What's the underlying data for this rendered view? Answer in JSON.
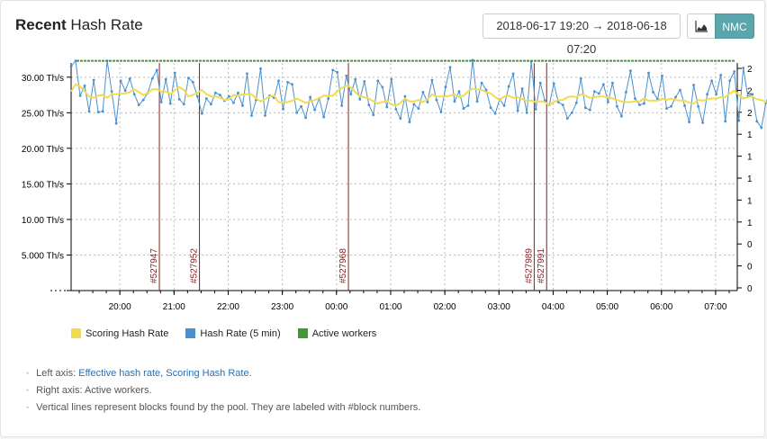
{
  "header": {
    "title_bold": "Recent",
    "title_rest": "Hash Rate",
    "date_range": "2018-06-17 19:20 → 2018-06-18 07:20",
    "chart_icon": "area-chart-icon",
    "coin_label": "NMC"
  },
  "legend": [
    {
      "label": "Scoring Hash Rate",
      "color": "#f2dc4e"
    },
    {
      "label": "Hash Rate (5 min)",
      "color": "#4a90d0"
    },
    {
      "label": "Active workers",
      "color": "#3f9a35"
    }
  ],
  "notes": {
    "left_prefix": "Left axis: ",
    "left_link1": "Effective hash rate",
    "left_sep": ", ",
    "left_link2": "Scoring Hash Rate",
    "left_suffix": ".",
    "right": "Right axis: Active workers.",
    "vertical": "Vertical lines represent blocks found by the pool. They are labeled with #block numbers."
  },
  "chart_data": {
    "type": "line",
    "x_ticks": [
      "20:00",
      "21:00",
      "22:00",
      "23:00",
      "00:00",
      "01:00",
      "02:00",
      "03:00",
      "04:00",
      "05:00",
      "06:00",
      "07:00"
    ],
    "y_left_ticks": [
      "30.00 Th/s",
      "25.00 Th/s",
      "20.00 Th/s",
      "15.00 Th/s",
      "10.00 Th/s",
      "5.000 Th/s",
      ""
    ],
    "y_right_ticks": [
      "2",
      "2",
      "2",
      "1",
      "1",
      "1",
      "1",
      "1",
      "0",
      "0",
      "0"
    ],
    "y_left_range": [
      0,
      32
    ],
    "x_range_hours": [
      19.1,
      31.4
    ],
    "grid": true,
    "legend_position": "bottom-left",
    "blocks": [
      {
        "label": "#527947",
        "time": 20.73
      },
      {
        "label": "#527952",
        "time": 21.47
      },
      {
        "label": "#527968",
        "time": 24.22
      },
      {
        "label": "#527989",
        "time": 27.65
      },
      {
        "label": "#527991",
        "time": 27.88
      }
    ],
    "series": [
      {
        "name": "Hash Rate (5 min)",
        "color": "#4a90d0",
        "start_time": 19.1,
        "step_hours": 0.0833,
        "values": [
          31.5,
          32.3,
          27.4,
          28.8,
          25.2,
          29.6,
          25.1,
          25.2,
          32.3,
          28.0,
          23.5,
          29.5,
          28.1,
          29.8,
          27.6,
          26.1,
          26.8,
          27.8,
          29.8,
          31.0,
          26.5,
          29.7,
          26.3,
          30.6,
          26.9,
          26.2,
          29.9,
          29.3,
          27.3,
          24.9,
          27.0,
          26.2,
          27.8,
          27.5,
          26.7,
          27.3,
          26.4,
          27.8,
          26.0,
          30.5,
          24.6,
          26.8,
          31.2,
          24.6,
          27.4,
          27.1,
          29.5,
          25.5,
          29.3,
          29.0,
          25.0,
          25.9,
          24.3,
          27.2,
          25.4,
          27.0,
          24.4,
          27.0,
          31.0,
          30.7,
          26.0,
          30.2,
          27.6,
          29.7,
          26.9,
          29.4,
          26.1,
          24.7,
          29.5,
          28.6,
          25.8,
          29.7,
          25.5,
          24.2,
          27.3,
          23.7,
          26.2,
          25.6,
          27.9,
          26.5,
          29.6,
          26.8,
          25.1,
          28.6,
          31.4,
          26.6,
          28.0,
          25.6,
          26.0,
          32.4,
          26.6,
          29.2,
          28.2,
          25.7,
          24.9,
          26.9,
          26.0,
          28.7,
          30.5,
          25.3,
          28.4,
          25.0,
          32.2,
          25.5,
          29.2,
          26.7,
          26.1,
          29.1,
          26.5,
          26.1,
          24.2,
          25.0,
          26.4,
          29.8,
          25.7,
          25.4,
          28.0,
          27.7,
          29.0,
          26.5,
          29.2,
          25.9,
          24.5,
          27.9,
          30.9,
          27.0,
          26.1,
          26.3,
          30.6,
          27.9,
          26.9,
          30.2,
          25.6,
          25.9,
          27.2,
          28.2,
          26.0,
          23.7,
          28.9,
          25.9,
          23.6,
          27.6,
          29.5,
          27.6,
          30.3,
          23.8,
          29.5,
          30.8,
          23.9,
          31.3,
          27.3,
          27.6,
          23.8,
          22.9,
          26.4,
          28.1,
          26.9,
          30.6,
          28.0,
          26.0,
          30.2,
          29.4,
          27.2,
          25.8,
          27.1,
          25.7,
          24.8,
          28.3,
          27.2,
          24.0,
          25.8,
          23.8,
          26.1,
          28.2,
          22.6,
          30.1,
          30.7,
          27.0,
          29.0,
          25.8,
          24.4,
          27.4,
          26.5,
          28.6,
          26.3,
          26.1,
          25.9,
          26.1,
          25.3,
          25.8,
          23.5,
          29.9,
          31.0,
          26.9,
          25.6,
          27.2,
          28.0,
          24.9,
          26.2,
          28.8,
          27.4
        ]
      },
      {
        "name": "Scoring Hash Rate",
        "color": "#f2dc4e",
        "start_time": 19.1,
        "step_hours": 0.0833,
        "values": [
          28.0,
          29.0,
          28.7,
          28.0,
          27.3,
          27.1,
          27.4,
          27.5,
          27.1,
          27.6,
          27.6,
          27.7,
          27.7,
          27.9,
          28.3,
          27.9,
          27.5,
          27.8,
          28.3,
          28.3,
          28.0,
          28.0,
          27.6,
          28.2,
          28.6,
          28.2,
          27.3,
          27.5,
          27.8,
          28.2,
          27.6,
          27.3,
          27.3,
          27.1,
          26.8,
          26.9,
          27.5,
          27.4,
          27.6,
          27.6,
          27.6,
          27.0,
          26.6,
          26.9,
          27.3,
          27.4,
          26.5,
          26.4,
          26.5,
          26.7,
          27.0,
          26.7,
          26.4,
          26.6,
          26.8,
          27.0,
          27.4,
          27.4,
          27.4,
          28.0,
          28.5,
          28.8,
          28.6,
          27.9,
          27.3,
          27.2,
          27.0,
          26.6,
          26.3,
          26.5,
          26.6,
          26.2,
          26.0,
          26.4,
          27.0,
          26.6,
          26.6,
          26.8,
          26.5,
          26.9,
          27.6,
          27.3,
          27.3,
          27.3,
          27.4,
          27.6,
          27.2,
          27.4,
          28.0,
          28.4,
          28.3,
          28.2,
          27.9,
          27.7,
          27.2,
          26.8,
          27.3,
          27.4,
          27.1,
          27.2,
          26.9,
          26.7,
          26.7,
          26.5,
          26.6,
          26.5,
          26.1,
          26.5,
          26.8,
          26.8,
          27.2,
          27.3,
          27.2,
          27.6,
          27.4,
          27.1,
          27.2,
          27.3,
          27.3,
          27.2,
          27.0,
          26.8,
          26.6,
          26.5,
          26.5,
          26.6,
          26.6,
          27.0,
          26.7,
          26.7,
          26.7,
          27.0,
          26.8,
          27.0,
          26.8,
          26.7,
          26.7,
          26.4,
          26.3,
          26.8,
          26.7,
          26.9,
          27.0,
          27.0,
          27.2,
          27.2,
          27.7,
          28.1,
          27.5,
          27.0,
          27.2,
          27.3,
          26.9,
          26.8,
          26.5,
          26.6,
          26.9,
          27.0,
          26.8,
          26.6,
          26.5,
          26.6,
          26.9,
          27.1,
          27.1,
          26.6,
          26.4,
          26.3,
          26.6,
          27.0,
          27.2,
          26.8,
          27.1,
          27.2,
          27.3,
          27.0,
          27.3,
          27.3,
          26.8,
          26.6,
          26.9,
          27.2,
          27.3,
          27.1,
          27.1,
          26.8,
          26.7,
          26.6,
          26.8,
          26.7,
          26.8,
          26.6,
          26.4,
          26.5,
          26.4,
          26.5,
          26.5,
          26.6,
          26.8
        ]
      },
      {
        "name": "Active workers",
        "color": "#3f9a35",
        "constant": 32.3
      }
    ]
  }
}
